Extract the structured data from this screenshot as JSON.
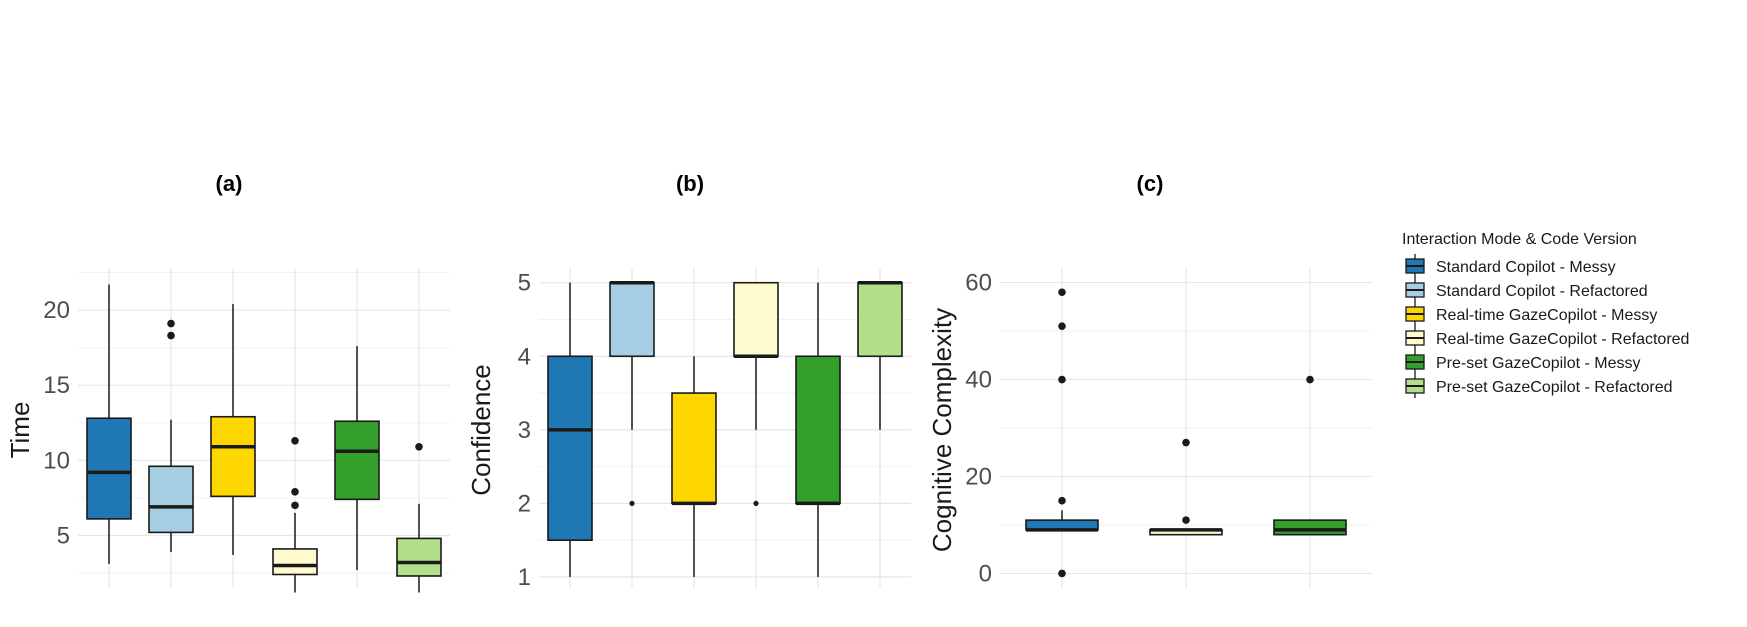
{
  "chart_data": [
    {
      "type": "box",
      "title": "(a)",
      "xlabel": "",
      "ylabel": "Time",
      "ylim": [
        1.5,
        22.8
      ],
      "yticks": [
        5,
        10,
        15,
        20
      ],
      "grid": true,
      "series": [
        {
          "name": "Standard Copilot - Messy",
          "min": 3.1,
          "q1": 6.1,
          "median": 9.2,
          "q3": 12.8,
          "max": 21.7,
          "outliers": []
        },
        {
          "name": "Standard Copilot - Refactored",
          "min": 3.9,
          "q1": 5.2,
          "median": 6.9,
          "q3": 9.6,
          "max": 12.7,
          "outliers": [
            18.3,
            19.1
          ]
        },
        {
          "name": "Real-time GazeCopilot - Messy",
          "min": 3.7,
          "q1": 7.6,
          "median": 10.9,
          "q3": 12.9,
          "max": 20.4,
          "outliers": []
        },
        {
          "name": "Real-time GazeCopilot - Refactored",
          "min": 1.2,
          "q1": 2.4,
          "median": 3.0,
          "q3": 4.1,
          "max": 6.5,
          "outliers": [
            7.0,
            7.9,
            11.3
          ]
        },
        {
          "name": "Pre-set GazeCopilot - Messy",
          "min": 2.7,
          "q1": 7.4,
          "median": 10.6,
          "q3": 12.6,
          "max": 17.6,
          "outliers": []
        },
        {
          "name": "Pre-set GazeCopilot - Refactored",
          "min": 1.2,
          "q1": 2.3,
          "median": 3.2,
          "q3": 4.8,
          "max": 7.1,
          "outliers": [
            10.9
          ]
        }
      ]
    },
    {
      "type": "box",
      "title": "(b)",
      "xlabel": "",
      "ylabel": "Confidence",
      "ylim": [
        0.85,
        5.2
      ],
      "yticks": [
        1,
        2,
        3,
        4,
        5
      ],
      "grid": true,
      "series": [
        {
          "name": "Standard Copilot - Messy",
          "min": 1,
          "q1": 1.5,
          "median": 3,
          "q3": 4,
          "max": 5,
          "outliers": []
        },
        {
          "name": "Standard Copilot - Refactored",
          "min": 3,
          "q1": 4,
          "median": 5,
          "q3": 5,
          "max": 5,
          "outliers": [
            2
          ]
        },
        {
          "name": "Real-time GazeCopilot - Messy",
          "min": 1,
          "q1": 2,
          "median": 2,
          "q3": 3.5,
          "max": 4,
          "outliers": []
        },
        {
          "name": "Real-time GazeCopilot - Refactored",
          "min": 3,
          "q1": 4,
          "median": 4,
          "q3": 5,
          "max": 5,
          "outliers": [
            2
          ]
        },
        {
          "name": "Pre-set GazeCopilot - Messy",
          "min": 1,
          "q1": 2,
          "median": 2,
          "q3": 4,
          "max": 5,
          "outliers": []
        },
        {
          "name": "Pre-set GazeCopilot - Refactored",
          "min": 3,
          "q1": 4,
          "median": 5,
          "q3": 5,
          "max": 5,
          "outliers": []
        }
      ]
    },
    {
      "type": "box",
      "title": "(c)",
      "xlabel": "",
      "ylabel": "Cognitive Complexity",
      "ylim": [
        -3,
        63
      ],
      "yticks": [
        0,
        20,
        40,
        60
      ],
      "grid": true,
      "series": [
        {
          "name": "Standard Copilot - Messy",
          "min": 9,
          "q1": 9,
          "median": 9,
          "q3": 11,
          "max": 13,
          "outliers": [
            0,
            15,
            40,
            51,
            58
          ]
        },
        {
          "name": "Real-time GazeCopilot - Refactored",
          "min": 8,
          "q1": 8,
          "median": 9,
          "q3": 9,
          "max": 9,
          "outliers": [
            11,
            27
          ]
        },
        {
          "name": "Pre-set GazeCopilot - Messy",
          "min": 8,
          "q1": 8,
          "median": 9,
          "q3": 11,
          "max": 11,
          "outliers": [
            40
          ]
        }
      ]
    }
  ],
  "legend": {
    "title": "Interaction Mode & Code Version",
    "position": "right",
    "items": [
      {
        "label": "Standard Copilot - Messy",
        "color": "#1f78b4"
      },
      {
        "label": "Standard Copilot - Refactored",
        "color": "#a6cee3"
      },
      {
        "label": "Real-time GazeCopilot - Messy",
        "color": "#ffd700"
      },
      {
        "label": "Real-time GazeCopilot - Refactored",
        "color": "#fffacd"
      },
      {
        "label": "Pre-set GazeCopilot - Messy",
        "color": "#33a02c"
      },
      {
        "label": "Pre-set GazeCopilot - Refactored",
        "color": "#b2df8a"
      }
    ]
  }
}
